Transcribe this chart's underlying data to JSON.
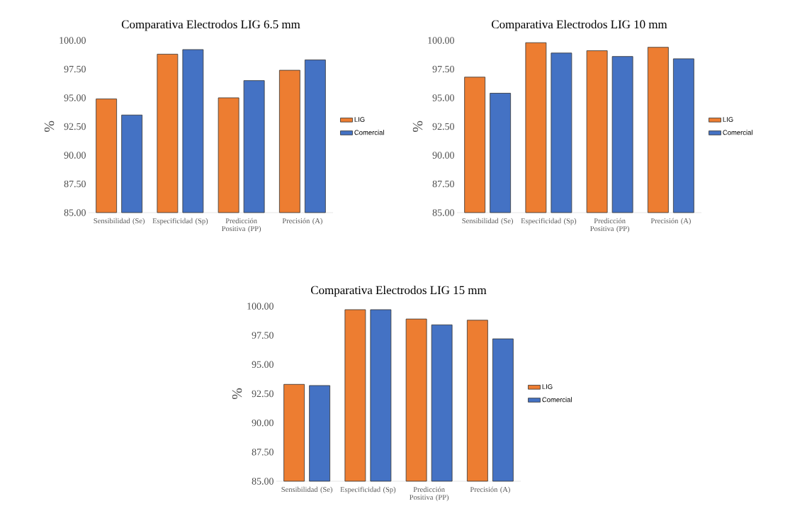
{
  "chart_data": [
    {
      "type": "bar",
      "title": "Comparativa Electrodos LIG 6.5 mm",
      "ylabel": "%",
      "categories": [
        "Sensibilidad (Se)",
        "Especificidad (Sp)",
        "Predicción Positiva (PP)",
        "Precisión (A)"
      ],
      "series": [
        {
          "name": "LIG",
          "color": "#ed7d31",
          "values": [
            94.9,
            98.8,
            95.0,
            97.4
          ]
        },
        {
          "name": "Comercial",
          "color": "#4472c4",
          "values": [
            93.5,
            99.2,
            96.5,
            98.3
          ]
        }
      ],
      "ylim": [
        85,
        100
      ],
      "yticks": [
        {
          "value": 85,
          "label": "85.00"
        },
        {
          "value": 87.5,
          "label": "87.50"
        },
        {
          "value": 90,
          "label": "90.00"
        },
        {
          "value": 92.5,
          "label": "92.50"
        },
        {
          "value": 95,
          "label": "95.00"
        },
        {
          "value": 97.5,
          "label": "97.50"
        },
        {
          "value": 100,
          "label": "100.00"
        }
      ],
      "legend": "right"
    },
    {
      "type": "bar",
      "title": "Comparativa Electrodos LIG 10 mm",
      "ylabel": "%",
      "categories": [
        "Sensibilidad (Se)",
        "Especificidad (Sp)",
        "Predicción Positiva (PP)",
        "Precisión (A)"
      ],
      "series": [
        {
          "name": "LIG",
          "color": "#ed7d31",
          "values": [
            96.8,
            99.8,
            99.1,
            99.4
          ]
        },
        {
          "name": "Comercial",
          "color": "#4472c4",
          "values": [
            95.4,
            98.9,
            98.6,
            98.4
          ]
        }
      ],
      "ylim": [
        85,
        100
      ],
      "yticks": [
        {
          "value": 85,
          "label": "85.00"
        },
        {
          "value": 87.5,
          "label": "87.50"
        },
        {
          "value": 90,
          "label": "90.00"
        },
        {
          "value": 92.5,
          "label": "92.50"
        },
        {
          "value": 95,
          "label": "95.00"
        },
        {
          "value": 97.5,
          "label": "97.50"
        },
        {
          "value": 100,
          "label": "100.00"
        }
      ],
      "legend": "right"
    },
    {
      "type": "bar",
      "title": "Comparativa Electrodos LIG 15 mm",
      "ylabel": "%",
      "categories": [
        "Sensibilidad (Se)",
        "Especificidad (Sp)",
        "Predicción Positiva (PP)",
        "Precisión (A)"
      ],
      "series": [
        {
          "name": "LIG",
          "color": "#ed7d31",
          "values": [
            93.3,
            99.7,
            98.9,
            98.8
          ]
        },
        {
          "name": "Comercial",
          "color": "#4472c4",
          "values": [
            93.2,
            99.7,
            98.4,
            97.2
          ]
        }
      ],
      "ylim": [
        85,
        100
      ],
      "yticks": [
        {
          "value": 85,
          "label": "85.00"
        },
        {
          "value": 87.5,
          "label": "87.50"
        },
        {
          "value": 90,
          "label": "90.00"
        },
        {
          "value": 92.5,
          "label": "92.50"
        },
        {
          "value": 95,
          "label": "95.00"
        },
        {
          "value": 97.5,
          "label": "97.50"
        },
        {
          "value": 100,
          "label": "100.00"
        }
      ],
      "legend": "right"
    }
  ]
}
